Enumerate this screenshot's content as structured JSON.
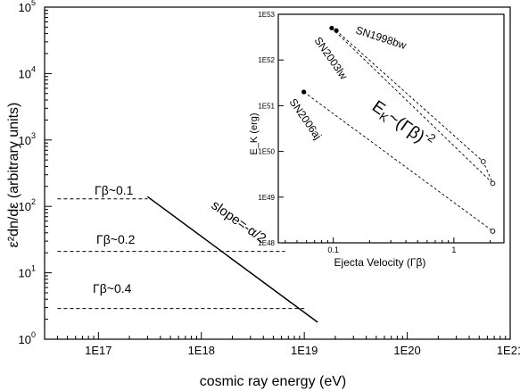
{
  "chart_data": [
    {
      "type": "line",
      "xlabel": "cosmic ray energy (eV)",
      "ylabel": "ε²dn/dε (arbitrary units)",
      "xscale": "log",
      "yscale": "log",
      "xlim": [
        3e+16,
        1e+21
      ],
      "ylim": [
        1,
        100000
      ],
      "x_ticks": [
        {
          "value": 1e+17,
          "label": "1E17"
        },
        {
          "value": 1e+18,
          "label": "1E18"
        },
        {
          "value": 1e+19,
          "label": "1E19"
        },
        {
          "value": 1e+20,
          "label": "1E20"
        },
        {
          "value": 1e+21,
          "label": "1E21"
        }
      ],
      "y_ticks": [
        {
          "value": 1,
          "base": "10",
          "exp": "0"
        },
        {
          "value": 10,
          "base": "10",
          "exp": "1"
        },
        {
          "value": 100,
          "base": "10",
          "exp": "2"
        },
        {
          "value": 1000,
          "base": "10",
          "exp": "3"
        },
        {
          "value": 10000,
          "base": "10",
          "exp": "4"
        },
        {
          "value": 100000,
          "base": "10",
          "exp": "5"
        }
      ],
      "series": [
        {
          "style": "dashed",
          "label": "Γβ~0.1",
          "points": [
            [
              4e+16,
              130
            ],
            [
              3e+17,
              130
            ]
          ]
        },
        {
          "style": "dashed",
          "label": "Γβ~0.2",
          "points": [
            [
              4e+16,
              21
            ],
            [
              6.5e+18,
              21
            ]
          ]
        },
        {
          "style": "dashed",
          "label": "Γβ~0.4",
          "points": [
            [
              4e+16,
              2.9
            ],
            [
              1e+19,
              2.9
            ]
          ]
        },
        {
          "style": "solid",
          "points": [
            [
              3e+17,
              140
            ],
            [
              1.35e+19,
              1.8
            ]
          ]
        }
      ],
      "annotations": [
        {
          "text": "slope=-α/2",
          "x": 2.3e+18,
          "y": 18
        }
      ],
      "grid": false
    },
    {
      "type": "scatter",
      "inset": true,
      "xlabel": "Ejecta Velocity (Γβ)",
      "ylabel": "E_K (erg)",
      "xscale": "log",
      "yscale": "log",
      "xlim": [
        0.035,
        2.6
      ],
      "ylim": [
        1e+48,
        1e+53
      ],
      "x_ticks": [
        {
          "value": 0.1,
          "label": "0.1"
        },
        {
          "value": 1,
          "label": "1"
        }
      ],
      "y_ticks": [
        {
          "value": 1e+48,
          "label": "1E48"
        },
        {
          "value": 1e+49,
          "label": "1E49"
        },
        {
          "value": 1e+50,
          "label": "1E50"
        },
        {
          "value": 1e+51,
          "label": "1E51"
        },
        {
          "value": 1e+52,
          "label": "1E52"
        },
        {
          "value": 1e+53,
          "label": "1E53"
        }
      ],
      "series": [
        {
          "name": "SN1998bw",
          "style": "dashed",
          "points": [
            [
              0.105,
              4.5e+52
            ],
            [
              1.75,
              6e+49
            ],
            [
              2.1,
              2e+49
            ]
          ]
        },
        {
          "name": "SN2003lw",
          "style": "dashed",
          "points": [
            [
              0.097,
              5e+52
            ],
            [
              2.1,
              2e+49
            ]
          ]
        },
        {
          "name": "SN2006aj",
          "style": "dashed",
          "points": [
            [
              0.057,
              2e+51
            ],
            [
              2.1,
              1.8e+48
            ]
          ]
        }
      ],
      "filled_markers": [
        [
          0.057,
          2e+51
        ],
        [
          0.097,
          5e+52
        ],
        [
          0.106,
          4.4e+52
        ]
      ],
      "open_markers": [
        [
          1.75,
          6e+49
        ],
        [
          2.1,
          2e+49
        ],
        [
          2.1,
          1.8e+48
        ]
      ],
      "annotations": [
        {
          "text_main": "E",
          "text_sub": "K",
          "text_rest": "~(Γβ)",
          "text_sup": "-2"
        }
      ],
      "grid": false
    }
  ]
}
